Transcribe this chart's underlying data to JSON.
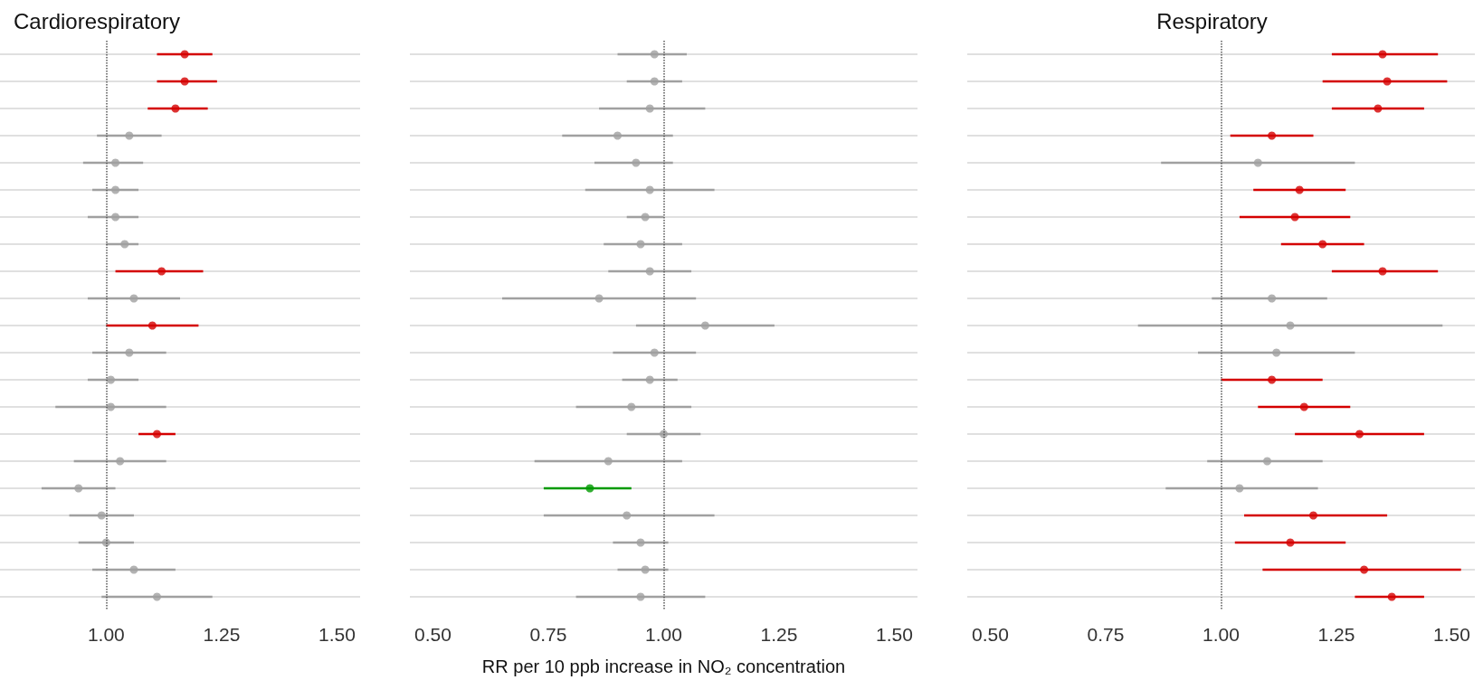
{
  "chart_data": [
    {
      "type": "scatter",
      "title": "Cardiorespiratory",
      "orientation": "horizontal",
      "marker": "circle",
      "grid": "y",
      "tick_labels": "x",
      "categories": [
        null,
        null,
        null,
        null,
        null,
        null,
        null,
        null,
        null,
        null,
        null,
        null,
        null,
        null,
        null,
        null,
        null,
        null,
        null,
        null,
        null
      ],
      "values": [
        1.17,
        1.17,
        1.15,
        1.05,
        1.02,
        1.02,
        1.02,
        1.04,
        1.12,
        1.06,
        1.1,
        1.05,
        1.01,
        1.01,
        1.11,
        1.03,
        0.94,
        0.99,
        1.0,
        1.06,
        1.11
      ],
      "errors": [
        [
          1.11,
          1.23
        ],
        [
          1.11,
          1.24
        ],
        [
          1.09,
          1.22
        ],
        [
          0.98,
          1.12
        ],
        [
          0.95,
          1.08
        ],
        [
          0.97,
          1.07
        ],
        [
          0.96,
          1.07
        ],
        [
          1.0,
          1.07
        ],
        [
          1.02,
          1.21
        ],
        [
          0.96,
          1.16
        ],
        [
          1.0,
          1.2
        ],
        [
          0.97,
          1.13
        ],
        [
          0.96,
          1.07
        ],
        [
          0.89,
          1.13
        ],
        [
          1.07,
          1.15
        ],
        [
          0.93,
          1.13
        ],
        [
          0.86,
          1.02
        ],
        [
          0.92,
          1.06
        ],
        [
          0.94,
          1.06
        ],
        [
          0.97,
          1.15
        ],
        [
          0.99,
          1.23
        ]
      ],
      "colors": [
        "#d40000",
        "#d40000",
        "#d40000",
        "#a0a0a0",
        "#a0a0a0",
        "#a0a0a0",
        "#a0a0a0",
        "#a0a0a0",
        "#d40000",
        "#a0a0a0",
        "#d40000",
        "#a0a0a0",
        "#a0a0a0",
        "#a0a0a0",
        "#d40000",
        "#a0a0a0",
        "#a0a0a0",
        "#a0a0a0",
        "#a0a0a0",
        "#a0a0a0",
        "#a0a0a0"
      ],
      "xlim": [
        0.77,
        1.55
      ],
      "xticks": [
        {
          "value": 1,
          "label": "1.00"
        },
        {
          "value": 1.25,
          "label": "1.25"
        },
        {
          "value": 1.5,
          "label": "1.50"
        }
      ],
      "ref_lines": [
        {
          "axis": "x",
          "value": 1,
          "line_style": "dotted",
          "color": "#555555"
        }
      ]
    },
    {
      "type": "scatter",
      "xlabel": "RR per 10 ppb increase in NO₂ concentration",
      "orientation": "horizontal",
      "marker": "circle",
      "grid": "y",
      "tick_labels": "x",
      "categories": [
        null,
        null,
        null,
        null,
        null,
        null,
        null,
        null,
        null,
        null,
        null,
        null,
        null,
        null,
        null,
        null,
        null,
        null,
        null,
        null,
        null
      ],
      "values": [
        0.98,
        0.98,
        0.97,
        0.9,
        0.94,
        0.97,
        0.96,
        0.95,
        0.97,
        0.86,
        1.09,
        0.98,
        0.97,
        0.93,
        1.0,
        0.88,
        0.84,
        0.92,
        0.95,
        0.96,
        0.95
      ],
      "errors": [
        [
          0.9,
          1.05
        ],
        [
          0.92,
          1.04
        ],
        [
          0.86,
          1.09
        ],
        [
          0.78,
          1.02
        ],
        [
          0.85,
          1.02
        ],
        [
          0.83,
          1.11
        ],
        [
          0.92,
          1.0
        ],
        [
          0.87,
          1.04
        ],
        [
          0.88,
          1.06
        ],
        [
          0.65,
          1.07
        ],
        [
          0.94,
          1.24
        ],
        [
          0.89,
          1.07
        ],
        [
          0.91,
          1.03
        ],
        [
          0.81,
          1.06
        ],
        [
          0.92,
          1.08
        ],
        [
          0.72,
          1.04
        ],
        [
          0.74,
          0.93
        ],
        [
          0.74,
          1.11
        ],
        [
          0.89,
          1.01
        ],
        [
          0.9,
          1.01
        ],
        [
          0.81,
          1.09
        ]
      ],
      "colors": [
        "#a0a0a0",
        "#a0a0a0",
        "#a0a0a0",
        "#a0a0a0",
        "#a0a0a0",
        "#a0a0a0",
        "#a0a0a0",
        "#a0a0a0",
        "#a0a0a0",
        "#a0a0a0",
        "#a0a0a0",
        "#a0a0a0",
        "#a0a0a0",
        "#a0a0a0",
        "#a0a0a0",
        "#a0a0a0",
        "#009a00",
        "#a0a0a0",
        "#a0a0a0",
        "#a0a0a0",
        "#a0a0a0"
      ],
      "xlim": [
        0.45,
        1.55
      ],
      "xticks": [
        {
          "value": 0.5,
          "label": "0.50"
        },
        {
          "value": 0.75,
          "label": "0.75"
        },
        {
          "value": 1,
          "label": "1.00"
        },
        {
          "value": 1.25,
          "label": "1.25"
        },
        {
          "value": 1.5,
          "label": "1.50"
        }
      ],
      "ref_lines": [
        {
          "axis": "x",
          "value": 1,
          "line_style": "dotted",
          "color": "#555555"
        }
      ]
    },
    {
      "type": "scatter",
      "title": "Respiratory",
      "orientation": "horizontal",
      "marker": "circle",
      "grid": "y",
      "tick_labels": "x",
      "categories": [
        null,
        null,
        null,
        null,
        null,
        null,
        null,
        null,
        null,
        null,
        null,
        null,
        null,
        null,
        null,
        null,
        null,
        null,
        null,
        null,
        null
      ],
      "values": [
        1.35,
        1.36,
        1.34,
        1.11,
        1.08,
        1.17,
        1.16,
        1.22,
        1.35,
        1.11,
        1.15,
        1.12,
        1.11,
        1.18,
        1.3,
        1.1,
        1.04,
        1.2,
        1.15,
        1.31,
        1.37
      ],
      "errors": [
        [
          1.24,
          1.47
        ],
        [
          1.22,
          1.49
        ],
        [
          1.24,
          1.44
        ],
        [
          1.02,
          1.2
        ],
        [
          0.87,
          1.29
        ],
        [
          1.07,
          1.27
        ],
        [
          1.04,
          1.28
        ],
        [
          1.13,
          1.31
        ],
        [
          1.24,
          1.47
        ],
        [
          0.98,
          1.23
        ],
        [
          0.82,
          1.48
        ],
        [
          0.95,
          1.29
        ],
        [
          1.0,
          1.22
        ],
        [
          1.08,
          1.28
        ],
        [
          1.16,
          1.44
        ],
        [
          0.97,
          1.22
        ],
        [
          0.88,
          1.21
        ],
        [
          1.05,
          1.36
        ],
        [
          1.03,
          1.27
        ],
        [
          1.09,
          1.52
        ],
        [
          1.29,
          1.44
        ]
      ],
      "colors": [
        "#d40000",
        "#d40000",
        "#d40000",
        "#d40000",
        "#a0a0a0",
        "#d40000",
        "#d40000",
        "#d40000",
        "#d40000",
        "#a0a0a0",
        "#a0a0a0",
        "#a0a0a0",
        "#d40000",
        "#d40000",
        "#d40000",
        "#a0a0a0",
        "#a0a0a0",
        "#d40000",
        "#d40000",
        "#d40000",
        "#d40000"
      ],
      "xlim": [
        0.45,
        1.55
      ],
      "xticks": [
        {
          "value": 0.5,
          "label": "0.50"
        },
        {
          "value": 0.75,
          "label": "0.75"
        },
        {
          "value": 1,
          "label": "1.00"
        },
        {
          "value": 1.25,
          "label": "1.25"
        },
        {
          "value": 1.5,
          "label": "1.50"
        }
      ],
      "ref_lines": [
        {
          "axis": "x",
          "value": 1,
          "line_style": "dotted",
          "color": "#555555"
        }
      ]
    }
  ]
}
